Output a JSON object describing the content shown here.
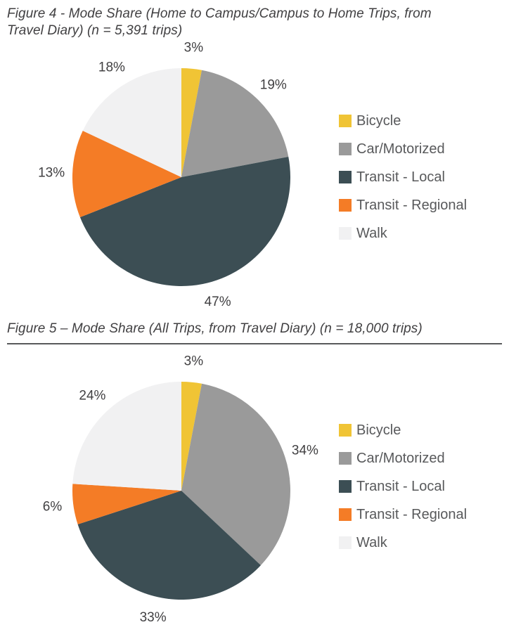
{
  "page": {
    "background": "#FFFFFF"
  },
  "colors": {
    "title_text": "#414042",
    "percent_label_text": "#414042",
    "legend_text": "#58595B",
    "title_rule": "#58595B"
  },
  "chart_data": [
    {
      "type": "pie",
      "title": "Figure 4 - Mode Share (Home to Campus/Campus to Home Trips, from Travel Diary) (n = 5,391 trips)",
      "categories": [
        "Bicycle",
        "Car/Motorized",
        "Transit - Local",
        "Transit - Regional",
        "Walk"
      ],
      "values": [
        3,
        19,
        47,
        13,
        18
      ],
      "labels": [
        "3%",
        "19%",
        "47%",
        "13%",
        "18%"
      ],
      "colors": [
        "#F0C435",
        "#9A9A9A",
        "#3C4E54",
        "#F47C26",
        "#F1F1F2"
      ],
      "unit": "%",
      "start_angle_deg": 0,
      "direction": "clockwise",
      "legend_position": "right",
      "legend": [
        "Bicycle",
        "Car/Motorized",
        "Transit - Local",
        "Transit - Regional",
        "Walk"
      ]
    },
    {
      "type": "pie",
      "title": "Figure 5 – Mode Share (All Trips, from Travel Diary) (n = 18,000 trips)",
      "categories": [
        "Bicycle",
        "Car/Motorized",
        "Transit - Local",
        "Transit - Regional",
        "Walk"
      ],
      "values": [
        3,
        34,
        33,
        6,
        24
      ],
      "labels": [
        "3%",
        "34%",
        "33%",
        "6%",
        "24%"
      ],
      "colors": [
        "#F0C435",
        "#9A9A9A",
        "#3C4E54",
        "#F47C26",
        "#F1F1F2"
      ],
      "unit": "%",
      "start_angle_deg": 0,
      "direction": "clockwise",
      "legend_position": "right",
      "legend": [
        "Bicycle",
        "Car/Motorized",
        "Transit - Local",
        "Transit - Regional",
        "Walk"
      ]
    }
  ]
}
